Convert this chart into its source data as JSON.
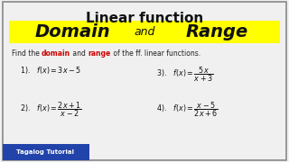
{
  "bg_color": "#f0f0f0",
  "title_text": "Linear function",
  "title_color": "#111111",
  "title_fontsize": 11,
  "banner_color": "#ffff00",
  "banner_text_domain": "Domain",
  "banner_text_and": "and",
  "banner_text_range": "Range",
  "banner_fontsize": 14,
  "banner_and_fontsize": 9,
  "instruction_fontsize": 5.5,
  "instruction_parts": [
    {
      "text": "Find the ",
      "color": "#222222",
      "style": "normal"
    },
    {
      "text": "domain",
      "color": "#cc0000",
      "style": "bold"
    },
    {
      "text": " and ",
      "color": "#222222",
      "style": "normal"
    },
    {
      "text": "range",
      "color": "#cc0000",
      "style": "bold"
    },
    {
      "text": " of the ff. linear functions.",
      "color": "#222222",
      "style": "normal"
    }
  ],
  "item_fontsize": 5.8,
  "footer_text": "Tagalog Tutorial",
  "footer_bg": "#2244aa",
  "footer_text_color": "#ffffff",
  "footer_fontsize": 5,
  "border_color": "#888888"
}
